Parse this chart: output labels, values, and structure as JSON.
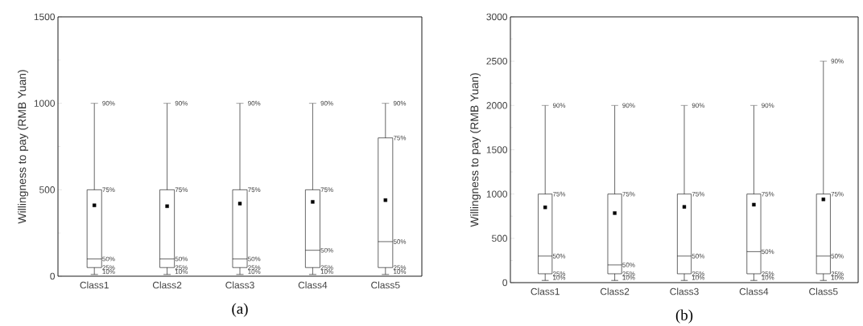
{
  "chart_data": [
    {
      "type": "box",
      "title": "(a)",
      "ylabel": "Willingness to pay (RMB Yuan)",
      "categories": [
        "Class1",
        "Class2",
        "Class3",
        "Class4",
        "Class5"
      ],
      "boxes": [
        {
          "low": 10,
          "q1": 50,
          "median": 100,
          "q3": 500,
          "high": 1000,
          "mean": 410
        },
        {
          "low": 10,
          "q1": 50,
          "median": 100,
          "q3": 500,
          "high": 1000,
          "mean": 405
        },
        {
          "low": 10,
          "q1": 50,
          "median": 100,
          "q3": 500,
          "high": 1000,
          "mean": 420
        },
        {
          "low": 10,
          "q1": 50,
          "median": 150,
          "q3": 500,
          "high": 1000,
          "mean": 430
        },
        {
          "low": 10,
          "q1": 50,
          "median": 200,
          "q3": 800,
          "high": 1000,
          "mean": 440
        }
      ],
      "ylim": [
        0,
        1500
      ],
      "yticks": [
        0,
        {
          "value": 250,
          "label": null
        },
        500,
        {
          "value": 750,
          "label": null
        },
        1000,
        {
          "value": 1250,
          "label": null
        },
        1500
      ],
      "annotations": [
        {
          "text": "90%",
          "x": "Class1",
          "y": 1000
        },
        {
          "text": "75%",
          "x": "Class1",
          "y": 500
        },
        {
          "text": "50%",
          "x": "Class1",
          "y": 100
        },
        {
          "text": "25%",
          "x": "Class1",
          "y": 50
        },
        {
          "text": "10%",
          "x": "Class1",
          "y": 10
        },
        {
          "text": "90%",
          "x": "Class2",
          "y": 1000
        },
        {
          "text": "75%",
          "x": "Class2",
          "y": 500
        },
        {
          "text": "50%",
          "x": "Class2",
          "y": 100
        },
        {
          "text": "25%",
          "x": "Class2",
          "y": 50
        },
        {
          "text": "10%",
          "x": "Class2",
          "y": 10
        },
        {
          "text": "90%",
          "x": "Class3",
          "y": 1000
        },
        {
          "text": "75%",
          "x": "Class3",
          "y": 500
        },
        {
          "text": "50%",
          "x": "Class3",
          "y": 100
        },
        {
          "text": "25%",
          "x": "Class3",
          "y": 50
        },
        {
          "text": "10%",
          "x": "Class3",
          "y": 10
        },
        {
          "text": "90%",
          "x": "Class4",
          "y": 1000
        },
        {
          "text": "75%",
          "x": "Class4",
          "y": 500
        },
        {
          "text": "50%",
          "x": "Class4",
          "y": 150
        },
        {
          "text": "25%",
          "x": "Class4",
          "y": 50
        },
        {
          "text": "10%",
          "x": "Class4",
          "y": 10
        },
        {
          "text": "90%",
          "x": "Class5",
          "y": 1000
        },
        {
          "text": "75%",
          "x": "Class5",
          "y": 800
        },
        {
          "text": "50%",
          "x": "Class5",
          "y": 200
        },
        {
          "text": "25%",
          "x": "Class5",
          "y": 50
        },
        {
          "text": "10%",
          "x": "Class5",
          "y": 10
        }
      ]
    },
    {
      "type": "box",
      "title": "(b)",
      "ylabel": "Willingness to pay (RMB Yuan)",
      "categories": [
        "Class1",
        "Class2",
        "Class3",
        "Class4",
        "Class5"
      ],
      "boxes": [
        {
          "low": 25,
          "q1": 100,
          "median": 300,
          "q3": 1000,
          "high": 2000,
          "mean": 850
        },
        {
          "low": 25,
          "q1": 100,
          "median": 200,
          "q3": 1000,
          "high": 2000,
          "mean": 785
        },
        {
          "low": 25,
          "q1": 100,
          "median": 300,
          "q3": 1000,
          "high": 2000,
          "mean": 855
        },
        {
          "low": 25,
          "q1": 100,
          "median": 350,
          "q3": 1000,
          "high": 2000,
          "mean": 880
        },
        {
          "low": 25,
          "q1": 100,
          "median": 300,
          "q3": 1000,
          "high": 2500,
          "mean": 940
        }
      ],
      "ylim": [
        0,
        3000
      ],
      "yticks": [
        0,
        {
          "value": 250,
          "label": null
        },
        500,
        {
          "value": 750,
          "label": null
        },
        1000,
        {
          "value": 1250,
          "label": null
        },
        1500,
        {
          "value": 1750,
          "label": null
        },
        2000,
        {
          "value": 2250,
          "label": null
        },
        2500,
        {
          "value": 2750,
          "label": null
        },
        3000
      ],
      "annotations": [
        {
          "text": "90%",
          "x": "Class1",
          "y": 2000
        },
        {
          "text": "75%",
          "x": "Class1",
          "y": 1000
        },
        {
          "text": "50%",
          "x": "Class1",
          "y": 300
        },
        {
          "text": "25%",
          "x": "Class1",
          "y": 100
        },
        {
          "text": "10%",
          "x": "Class1",
          "y": 25
        },
        {
          "text": "90%",
          "x": "Class2",
          "y": 2000
        },
        {
          "text": "75%",
          "x": "Class2",
          "y": 1000
        },
        {
          "text": "50%",
          "x": "Class2",
          "y": 200
        },
        {
          "text": "25%",
          "x": "Class2",
          "y": 100
        },
        {
          "text": "10%",
          "x": "Class2",
          "y": 25
        },
        {
          "text": "90%",
          "x": "Class3",
          "y": 2000
        },
        {
          "text": "75%",
          "x": "Class3",
          "y": 1000
        },
        {
          "text": "50%",
          "x": "Class3",
          "y": 300
        },
        {
          "text": "25%",
          "x": "Class3",
          "y": 100
        },
        {
          "text": "10%",
          "x": "Class3",
          "y": 25
        },
        {
          "text": "90%",
          "x": "Class4",
          "y": 2000
        },
        {
          "text": "75%",
          "x": "Class4",
          "y": 1000
        },
        {
          "text": "50%",
          "x": "Class4",
          "y": 350
        },
        {
          "text": "25%",
          "x": "Class4",
          "y": 100
        },
        {
          "text": "10%",
          "x": "Class4",
          "y": 25
        },
        {
          "text": "90%",
          "x": "Class5",
          "y": 2500
        },
        {
          "text": "75%",
          "x": "Class5",
          "y": 1000
        },
        {
          "text": "50%",
          "x": "Class5",
          "y": 300
        },
        {
          "text": "25%",
          "x": "Class5",
          "y": 100
        },
        {
          "text": "10%",
          "x": "Class5",
          "y": 25
        }
      ]
    }
  ]
}
